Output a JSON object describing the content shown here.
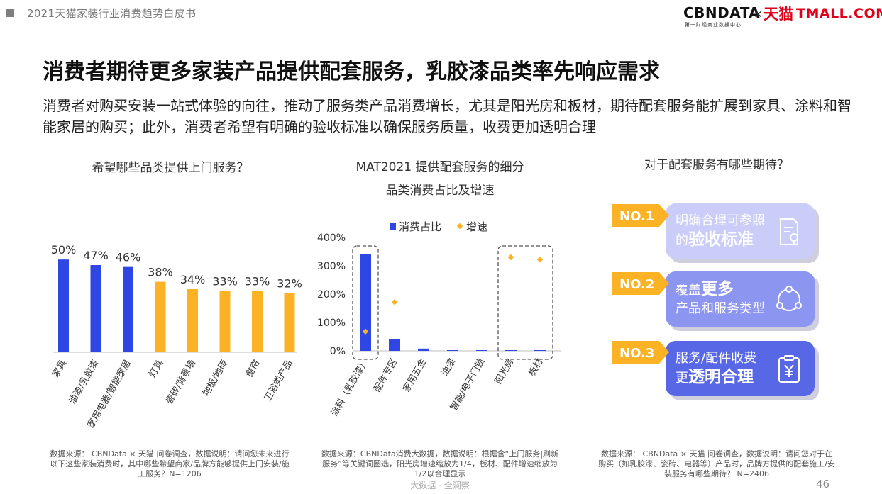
{
  "header": {
    "report_title": "2021天猫家装行业消费趋势白皮书",
    "logo_cbn": "CBNDATA",
    "logo_cbn_sub": "第一财经商业数据中心",
    "logo_x": "×",
    "logo_tmall_cn": "天猫",
    "logo_tmall_en": "TMALL.COM"
  },
  "title": "消费者期待更多家装产品提供配套服务，乳胶漆品类率先响应需求",
  "subtitle": "消费者对购买安装一站式体验的向往，推动了服务类产品消费增长，尤其是阳光房和板材，期待配套服务能扩展到家具、涂料和智能家居的购买；此外，消费者希望有明确的验收标准以确保服务质量，收费更加透明合理",
  "section1": {
    "title": "希望哪些品类提供上门服务？"
  },
  "section2": {
    "title_line1": "MAT2021 提供配套服务的细分",
    "title_line2": "品类消费占比及增速"
  },
  "section3": {
    "title": "对于配套服务有哪些期待？"
  },
  "chart_data": [
    {
      "type": "bar",
      "categories": [
        "家具",
        "油漆/乳胶漆",
        "家用电器/智能家居",
        "灯具",
        "瓷砖/背景墙",
        "地板/地砖",
        "窗帘",
        "卫浴类产品"
      ],
      "values": [
        50,
        47,
        46,
        38,
        34,
        33,
        33,
        32
      ],
      "value_labels": [
        "50%",
        "47%",
        "46%",
        "38%",
        "34%",
        "33%",
        "33%",
        "32%"
      ],
      "colors": [
        "#2e46e3",
        "#2e46e3",
        "#2e46e3",
        "#fbb224",
        "#fbb224",
        "#fbb224",
        "#fbb224",
        "#fbb224"
      ],
      "ylim": [
        0,
        60
      ]
    },
    {
      "type": "bar",
      "categories": [
        "涂料（乳胶漆）",
        "配件专区",
        "家用五金",
        "油漆",
        "智能/电子门锁",
        "阳光房",
        "板材"
      ],
      "series": [
        {
          "name": "消费占比",
          "kind": "bar",
          "color": "#2e46e3",
          "values": [
            340,
            42,
            8,
            2,
            2,
            1,
            1
          ]
        },
        {
          "name": "增速",
          "kind": "point",
          "color": "#fbb224",
          "values": [
            68,
            172,
            null,
            null,
            null,
            330,
            322
          ]
        }
      ],
      "yticks": [
        "0%",
        "100%",
        "200%",
        "300%",
        "400%"
      ],
      "ylim": [
        0,
        400
      ],
      "legend": "top",
      "highlight_groups": [
        [
          0
        ],
        [
          5,
          6
        ]
      ]
    }
  ],
  "services": [
    {
      "no": "NO.1",
      "line1": "明确合理可参照",
      "line2_prefix": "的",
      "line2_bold": "验收标准",
      "icon": "document-check-icon"
    },
    {
      "no": "NO.2",
      "line1_prefix": "覆盖",
      "line1_bold": "更多",
      "line2": "产品和服务类型",
      "icon": "network-circle-icon"
    },
    {
      "no": "NO.3",
      "line1": "服务/配件收费",
      "line2_prefix": "更",
      "line2_bold": "透明合理",
      "icon": "clipboard-yen-icon"
    }
  ],
  "notes": {
    "note1": "数据来源： CBNData × 天猫 问卷调查，数据说明：请问您未来进行以下这些家装消费时，其中哪些希望商家/品牌方能够提供上门安装/施工服务？N=1206",
    "note2": "数据来源：CBNData消费大数据，数据说明：根据含“上门服务|刷新服务”等关键词圈选，阳光房增速缩放为1/4，板材、配件增速缩放为1/2以合理显示",
    "note3": "数据来源： CBNData × 天猫 问卷调查，数据说明：请问您对于在购买（如乳胶漆、瓷砖、电器等）产品时，品牌方提供的配套施工/安装服务有哪些期待？ N=2406"
  },
  "footer": {
    "watermark": "大数据 · 全洞察",
    "page": "46"
  }
}
